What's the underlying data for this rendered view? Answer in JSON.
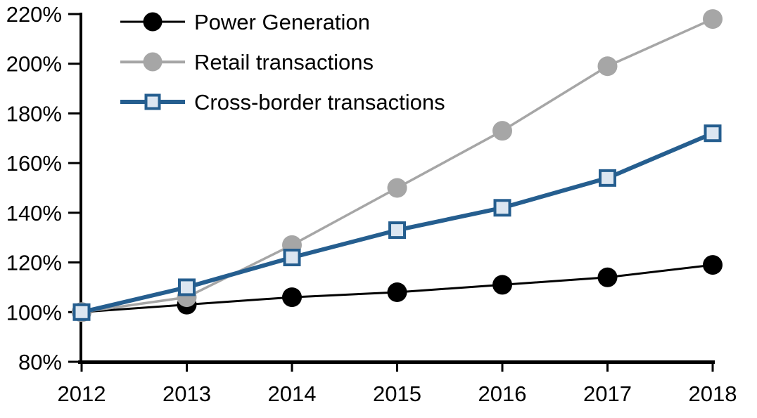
{
  "chart_data": {
    "type": "line",
    "title": "",
    "xlabel": "",
    "ylabel": "",
    "x_categories": [
      "2012",
      "2013",
      "2014",
      "2015",
      "2016",
      "2017",
      "2018"
    ],
    "yticks": [
      "80%",
      "100%",
      "120%",
      "140%",
      "160%",
      "180%",
      "200%",
      "220%"
    ],
    "ylim": [
      80,
      220
    ],
    "ytick_step": 20,
    "grid": false,
    "legend_position": "top-left-inside",
    "axis_color": "#000000",
    "series": [
      {
        "name": "Power Generation",
        "marker": "circle",
        "line_color": "#000000",
        "marker_fill": "#000000",
        "values": [
          100,
          103,
          106,
          108,
          111,
          114,
          119
        ]
      },
      {
        "name": "Retail transactions",
        "marker": "circle",
        "line_color": "#A6A6A6",
        "marker_fill": "#A6A6A6",
        "values": [
          100,
          106,
          127,
          150,
          173,
          199,
          218
        ]
      },
      {
        "name": "Cross-border transactions",
        "marker": "square",
        "line_color": "#255E8F",
        "marker_fill": "#DCE6F1",
        "values": [
          100,
          110,
          122,
          133,
          142,
          154,
          172
        ]
      }
    ]
  }
}
